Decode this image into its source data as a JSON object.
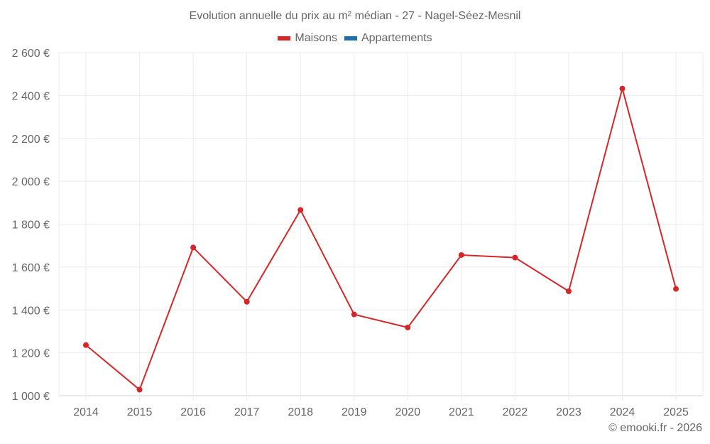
{
  "title": "Evolution annuelle du prix au m² médian - 27 - Nagel-Séez-Mesnil",
  "legend": [
    {
      "label": "Maisons",
      "color": "#d62728"
    },
    {
      "label": "Appartements",
      "color": "#1f6fa8"
    }
  ],
  "credit": "© emooki.fr - 2026",
  "colors": {
    "grid": "#ebebeb",
    "axis": "#d0d0d0",
    "text": "#666666",
    "maisons": "#d62728"
  },
  "chart_data": {
    "type": "line",
    "title": "Evolution annuelle du prix au m² médian - 27 - Nagel-Séez-Mesnil",
    "xlabel": "",
    "ylabel": "",
    "categories": [
      "2014",
      "2015",
      "2016",
      "2017",
      "2018",
      "2019",
      "2020",
      "2021",
      "2022",
      "2023",
      "2024",
      "2025"
    ],
    "series": [
      {
        "name": "Maisons",
        "color": "#d62728",
        "values": [
          1236,
          1028,
          1691,
          1438,
          1866,
          1379,
          1318,
          1656,
          1644,
          1487,
          2432,
          1498
        ]
      },
      {
        "name": "Appartements",
        "color": "#1f6fa8",
        "values": []
      }
    ],
    "ylim": [
      1000,
      2600
    ],
    "yticks": [
      1000,
      1200,
      1400,
      1600,
      1800,
      2000,
      2200,
      2400,
      2600
    ],
    "ytick_labels": [
      "1 000 €",
      "1 200 €",
      "1 400 €",
      "1 600 €",
      "1 800 €",
      "2 000 €",
      "2 200 €",
      "2 400 €",
      "2 600 €"
    ],
    "grid": true,
    "legend_position": "top"
  }
}
